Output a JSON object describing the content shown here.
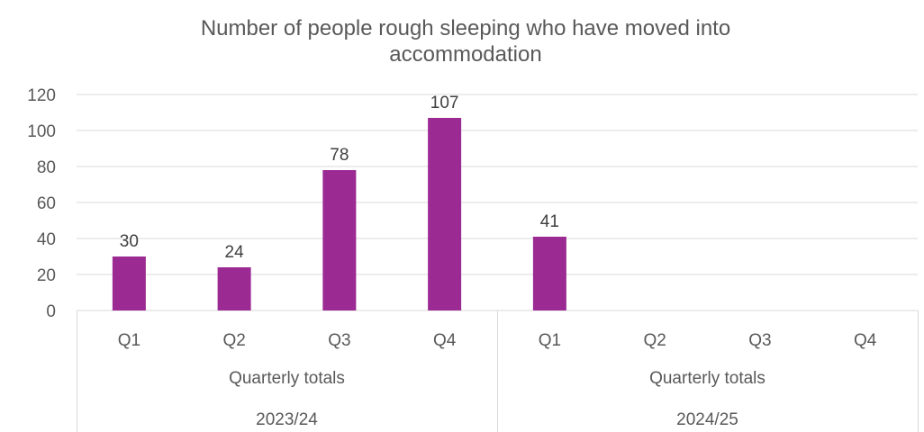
{
  "chart_data": {
    "type": "bar",
    "title_lines": [
      "Number of people rough sleeping who have moved into",
      "accommodation"
    ],
    "categories": [
      "Q1",
      "Q2",
      "Q3",
      "Q4",
      "Q1",
      "Q2",
      "Q3",
      "Q4"
    ],
    "category_groups": [
      {
        "label": "Quarterly totals",
        "year": "2023/24",
        "size": 4
      },
      {
        "label": "Quarterly totals",
        "year": "2024/25",
        "size": 4
      }
    ],
    "values": [
      30,
      24,
      78,
      107,
      41,
      null,
      null,
      null
    ],
    "data_labels": [
      "30",
      "24",
      "78",
      "107",
      "41",
      "",
      "",
      ""
    ],
    "y_ticks": [
      "0",
      "20",
      "40",
      "60",
      "80",
      "100",
      "120"
    ],
    "ylim": [
      0,
      120
    ],
    "xlabel": "",
    "ylabel": "",
    "grid": true,
    "legend": "none",
    "bar_color": "#9b2a93"
  }
}
